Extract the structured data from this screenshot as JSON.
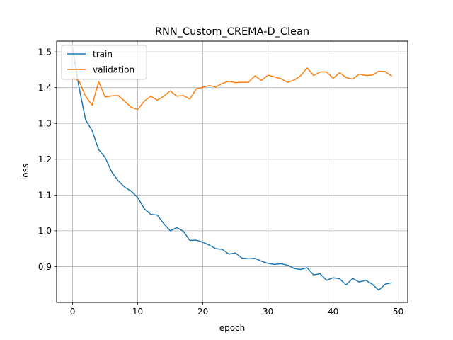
{
  "chart_data": {
    "type": "line",
    "title": "RNN_Custom_CREMA-D_Clean",
    "xlabel": "epoch",
    "ylabel": "loss",
    "xlim": [
      -2.45,
      51.45
    ],
    "ylim": [
      0.8,
      1.53
    ],
    "xticks": [
      0,
      10,
      20,
      30,
      40,
      50
    ],
    "yticks": [
      0.9,
      1.0,
      1.1,
      1.2,
      1.3,
      1.4,
      1.5
    ],
    "grid": true,
    "legend": "top-left",
    "x": [
      0,
      1,
      2,
      3,
      4,
      5,
      6,
      7,
      8,
      9,
      10,
      11,
      12,
      13,
      14,
      15,
      16,
      17,
      18,
      19,
      20,
      21,
      22,
      23,
      24,
      25,
      26,
      27,
      28,
      29,
      30,
      31,
      32,
      33,
      34,
      35,
      36,
      37,
      38,
      39,
      40,
      41,
      42,
      43,
      44,
      45,
      46,
      47,
      48,
      49
    ],
    "series": [
      {
        "name": "train",
        "color": "#1f77b4",
        "values": [
          1.51,
          1.4,
          1.31,
          1.28,
          1.227,
          1.205,
          1.165,
          1.14,
          1.122,
          1.111,
          1.093,
          1.062,
          1.046,
          1.044,
          1.02,
          1.0,
          1.009,
          0.999,
          0.973,
          0.974,
          0.968,
          0.96,
          0.95,
          0.948,
          0.935,
          0.938,
          0.924,
          0.922,
          0.923,
          0.915,
          0.909,
          0.906,
          0.908,
          0.904,
          0.895,
          0.892,
          0.897,
          0.877,
          0.88,
          0.862,
          0.869,
          0.866,
          0.849,
          0.867,
          0.857,
          0.862,
          0.851,
          0.834,
          0.851,
          0.855
        ]
      },
      {
        "name": "validation",
        "color": "#ff7f0e",
        "values": [
          1.428,
          1.418,
          1.376,
          1.351,
          1.417,
          1.374,
          1.377,
          1.378,
          1.362,
          1.345,
          1.339,
          1.362,
          1.376,
          1.365,
          1.376,
          1.391,
          1.376,
          1.378,
          1.368,
          1.397,
          1.401,
          1.406,
          1.402,
          1.412,
          1.418,
          1.414,
          1.415,
          1.415,
          1.433,
          1.42,
          1.435,
          1.43,
          1.425,
          1.415,
          1.421,
          1.433,
          1.455,
          1.434,
          1.444,
          1.444,
          1.426,
          1.442,
          1.428,
          1.424,
          1.438,
          1.434,
          1.435,
          1.446,
          1.445,
          1.432
        ]
      }
    ]
  }
}
